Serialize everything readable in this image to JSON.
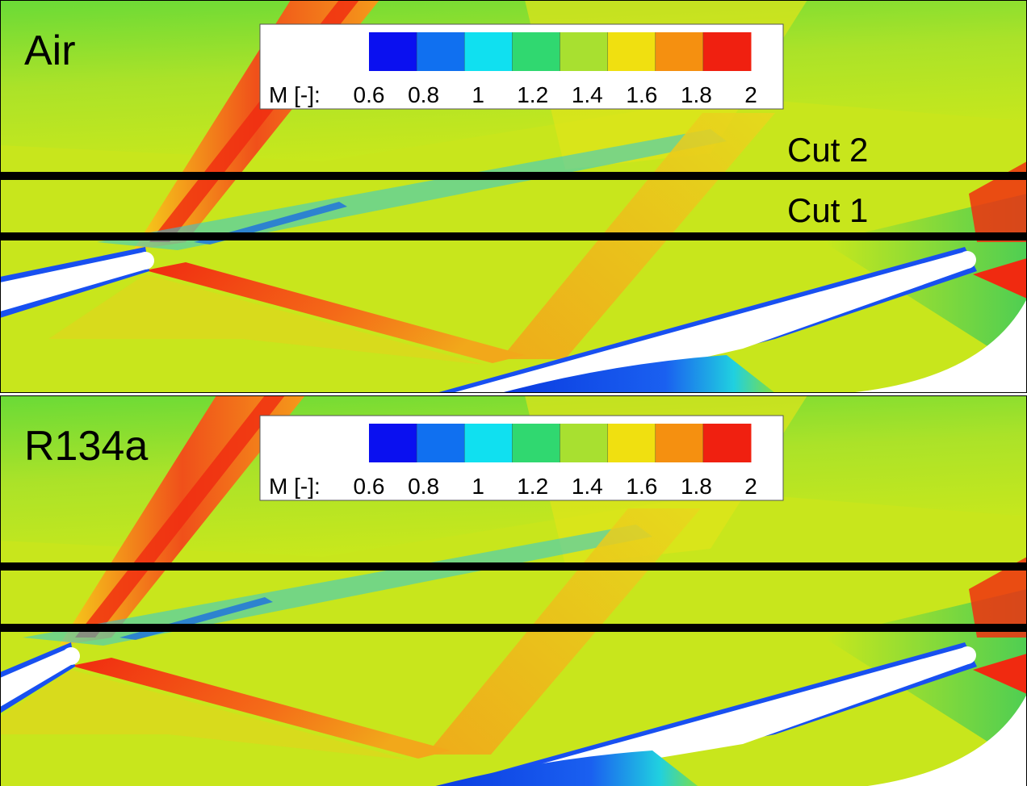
{
  "panels": [
    {
      "label": "Air",
      "colorbar": {
        "label": "M [-]:",
        "ticks": [
          0.6,
          0.8,
          1,
          1.2,
          1.4,
          1.6,
          1.8,
          2
        ]
      },
      "cuts": [
        {
          "label": "Cut 2"
        },
        {
          "label": "Cut 1"
        }
      ]
    },
    {
      "label": "R134a",
      "colorbar": {
        "label": "M [-]:",
        "ticks": [
          0.6,
          0.8,
          1,
          1.2,
          1.4,
          1.6,
          1.8,
          2
        ]
      }
    }
  ]
}
